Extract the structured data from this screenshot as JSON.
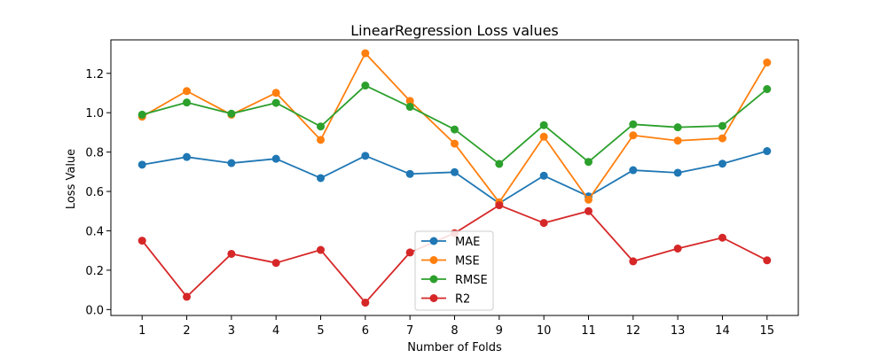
{
  "chart_data": {
    "type": "line",
    "title": "LinearRegression Loss values",
    "xlabel": "Number of Folds",
    "ylabel": "Loss Value",
    "x": [
      1,
      2,
      3,
      4,
      5,
      6,
      7,
      8,
      9,
      10,
      11,
      12,
      13,
      14,
      15
    ],
    "x_tick_labels": [
      "1",
      "2",
      "3",
      "4",
      "5",
      "6",
      "7",
      "8",
      "9",
      "10",
      "11",
      "12",
      "13",
      "14",
      "15"
    ],
    "y_ticks": [
      0.0,
      0.2,
      0.4,
      0.6,
      0.8,
      1.0,
      1.2
    ],
    "y_tick_labels": [
      "0.0",
      "0.2",
      "0.4",
      "0.6",
      "0.8",
      "1.0",
      "1.2"
    ],
    "xlim": [
      0.3,
      15.7
    ],
    "ylim": [
      -0.03,
      1.37
    ],
    "grid": false,
    "legend_position": "lower-center",
    "series": [
      {
        "name": "MAE",
        "color": "#1f77b4",
        "values": [
          0.736,
          0.775,
          0.744,
          0.766,
          0.668,
          0.781,
          0.689,
          0.698,
          0.54,
          0.68,
          0.575,
          0.708,
          0.695,
          0.741,
          0.805
        ]
      },
      {
        "name": "MSE",
        "color": "#ff7f0e",
        "values": [
          0.98,
          1.11,
          0.99,
          1.101,
          0.862,
          1.302,
          1.06,
          0.843,
          0.545,
          0.878,
          0.558,
          0.885,
          0.858,
          0.87,
          1.255
        ]
      },
      {
        "name": "RMSE",
        "color": "#2ca02c",
        "values": [
          0.99,
          1.052,
          0.995,
          1.05,
          0.93,
          1.138,
          1.03,
          0.915,
          0.74,
          0.937,
          0.75,
          0.941,
          0.926,
          0.933,
          1.12
        ]
      },
      {
        "name": "R2",
        "color": "#d62728",
        "values": [
          0.35,
          0.065,
          0.283,
          0.237,
          0.303,
          0.035,
          0.29,
          0.388,
          0.53,
          0.44,
          0.5,
          0.245,
          0.31,
          0.365,
          0.25
        ]
      }
    ]
  }
}
